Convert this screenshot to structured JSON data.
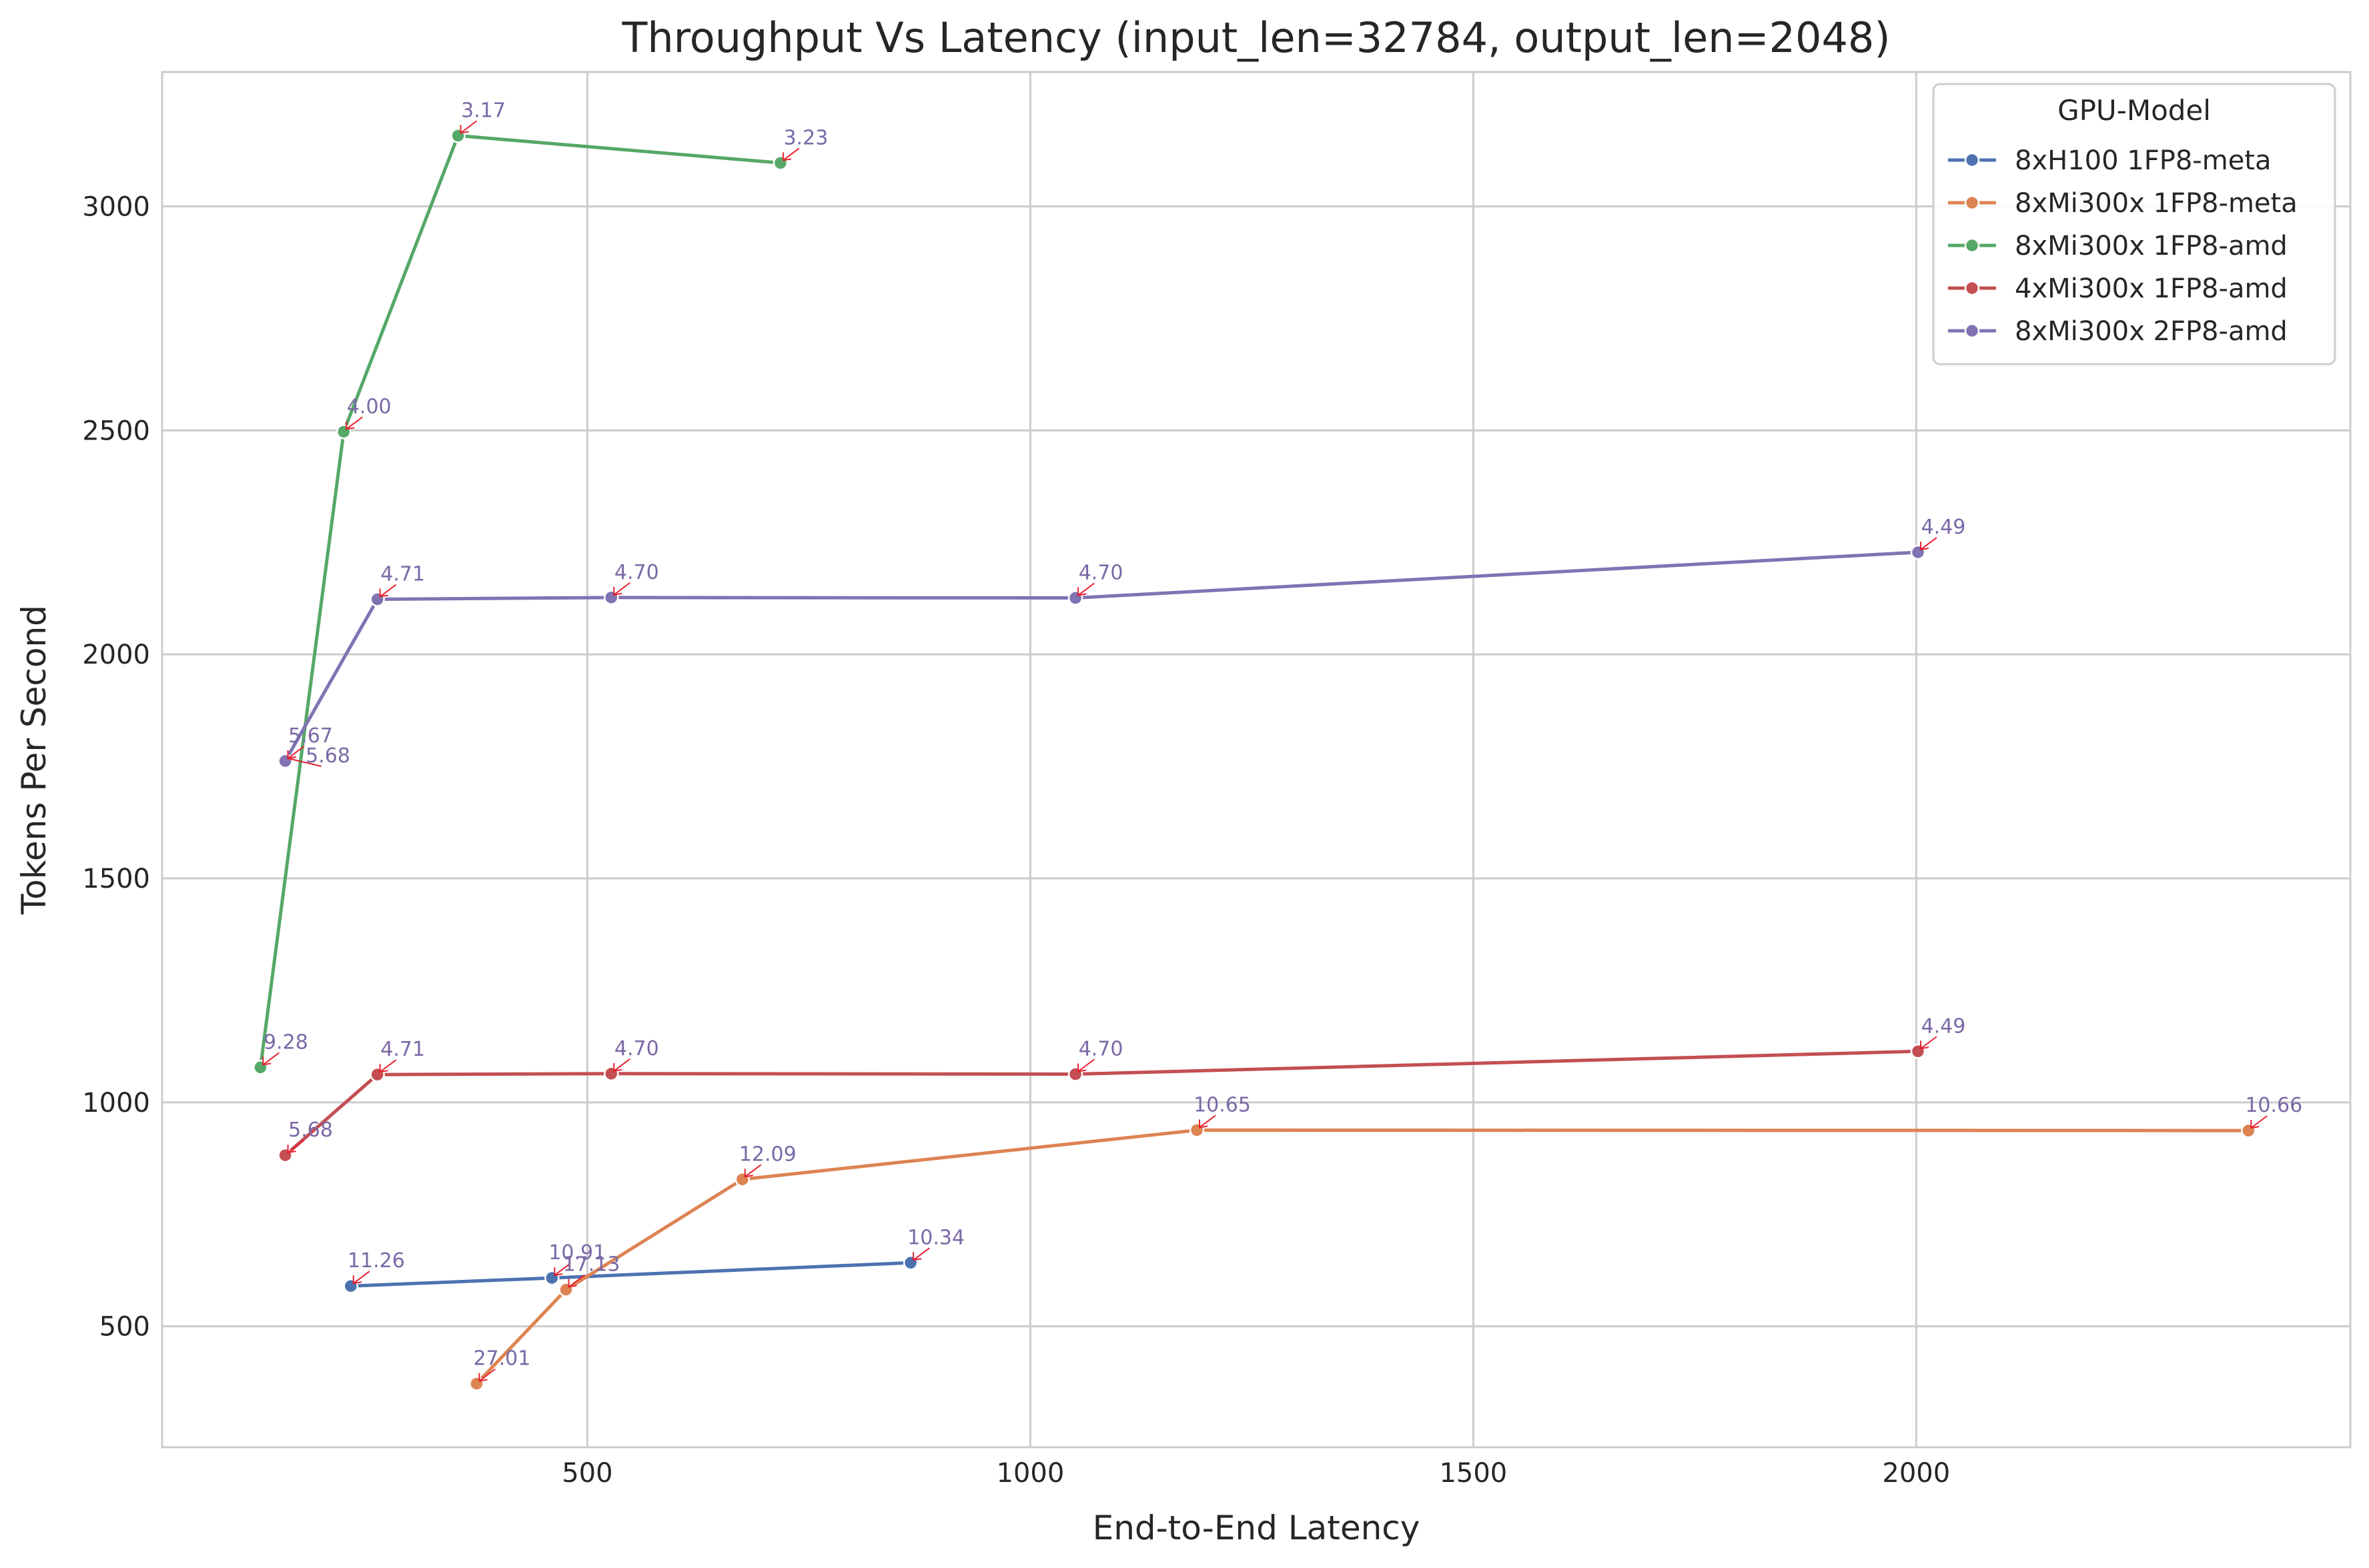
{
  "chart_data": {
    "type": "line",
    "title": "Throughput Vs Latency (input_len=32784, output_len=2048)",
    "xlabel": "End-to-End Latency",
    "ylabel": "Tokens Per Second",
    "xlim": [
      20,
      2490
    ],
    "ylim": [
      230,
      3300
    ],
    "xticks": [
      500,
      1000,
      1500,
      2000
    ],
    "yticks": [
      500,
      1000,
      1500,
      2000,
      2500,
      3000
    ],
    "grid": true,
    "legend": {
      "title": "GPU-Model",
      "position": "top-right"
    },
    "series": [
      {
        "name": "8xH100 1FP8-meta",
        "color": "#4c72b0",
        "points": [
          {
            "x": 233,
            "y": 590,
            "label": "11.26"
          },
          {
            "x": 460,
            "y": 608,
            "label": "10.91"
          },
          {
            "x": 865,
            "y": 642,
            "label": "10.34"
          }
        ]
      },
      {
        "name": "8xMi300x 1FP8-meta",
        "color": "#dd8452",
        "points": [
          {
            "x": 375,
            "y": 372,
            "label": "27.01"
          },
          {
            "x": 476,
            "y": 582,
            "label": "17.13"
          },
          {
            "x": 675,
            "y": 828,
            "label": "12.09"
          },
          {
            "x": 1188,
            "y": 938,
            "label": "10.65"
          },
          {
            "x": 2375,
            "y": 937,
            "label": "10.66"
          }
        ]
      },
      {
        "name": "8xMi300x 1FP8-amd",
        "color": "#55a868",
        "points": [
          {
            "x": 131,
            "y": 1078,
            "label": "9.28"
          },
          {
            "x": 225,
            "y": 2497,
            "label": "4.00"
          },
          {
            "x": 354,
            "y": 3158,
            "label": "3.17"
          },
          {
            "x": 718,
            "y": 3097,
            "label": "3.23"
          }
        ]
      },
      {
        "name": "4xMi300x 1FP8-amd",
        "color": "#c44e52",
        "points": [
          {
            "x": 159,
            "y": 882,
            "label": "5.68"
          },
          {
            "x": 263,
            "y": 1062,
            "label": "4.71"
          },
          {
            "x": 527,
            "y": 1064,
            "label": "4.70"
          },
          {
            "x": 1051,
            "y": 1063,
            "label": "4.70"
          },
          {
            "x": 2002,
            "y": 1114,
            "label": "4.49"
          }
        ]
      },
      {
        "name": "8xMi300x 2FP8-amd",
        "color": "#8172b3",
        "points": [
          {
            "x": 159,
            "y": 1762,
            "label": "5.67"
          },
          {
            "x": 159,
            "y": 1762,
            "label": "5.68"
          },
          {
            "x": 263,
            "y": 2123,
            "label": "4.71"
          },
          {
            "x": 527,
            "y": 2127,
            "label": "4.70"
          },
          {
            "x": 1051,
            "y": 2126,
            "label": "4.70"
          },
          {
            "x": 2002,
            "y": 2228,
            "label": "4.49"
          }
        ]
      }
    ]
  }
}
